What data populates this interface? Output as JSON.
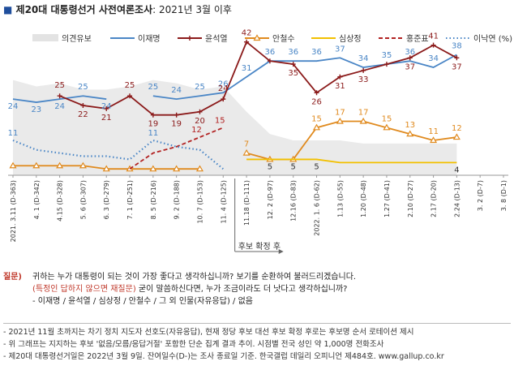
{
  "title": {
    "bullet": "■",
    "main": "제20대 대통령선거 사전여론조사",
    "sub": ": 2021년 3월 이후"
  },
  "chart_data": {
    "type": "line",
    "x": [
      "2021. 3.11 (D-363)",
      "4. 1 (D-342)",
      "4.15 (D-328)",
      "5. 6 (D-307)",
      "6. 3 (D-279)",
      "7. 1 (D-251)",
      "8. 5 (D-216)",
      "9. 2 (D-188)",
      "10. 7 (D-153)",
      "11. 4 (D-125)",
      "11.18 (D-111)",
      "12. 2 (D-97)",
      "12.16 (D-83)",
      "2022. 1. 6 (D-62)",
      "1.13 (D-55)",
      "1.20 (D-48)",
      "1.27 (D-41)",
      "2.10 (D-27)",
      "2.17 (D-20)",
      "2.24 (D-13)",
      "3. 2 (D-7)",
      "3. 8 (D-1)"
    ],
    "ylim": [
      0,
      45
    ],
    "area_label": "의견유보",
    "area": [
      30,
      28,
      29,
      27,
      27,
      28,
      30,
      29,
      27,
      28,
      20,
      13,
      11,
      11,
      11,
      10,
      10,
      10,
      10,
      10,
      null,
      null
    ],
    "series": [
      {
        "name": "이재명",
        "color": "#4a86c6",
        "dash": "",
        "marker": "none",
        "values": [
          24,
          23,
          24,
          25,
          24,
          null,
          25,
          24,
          25,
          26,
          31,
          36,
          36,
          36,
          37,
          34,
          35,
          36,
          34,
          38,
          null,
          null
        ]
      },
      {
        "name": "윤석열",
        "color": "#8b1a1a",
        "dash": "",
        "marker": "plus",
        "values": [
          null,
          null,
          25,
          22,
          21,
          25,
          19,
          19,
          20,
          24,
          42,
          36,
          35,
          26,
          31,
          33,
          35,
          37,
          41,
          37,
          null,
          null
        ]
      },
      {
        "name": "안철수",
        "color": "#e08a1e",
        "dash": "",
        "marker": "triangle",
        "values": [
          3,
          3,
          3,
          3,
          2,
          2,
          2,
          2,
          2,
          null,
          7,
          5,
          5,
          15,
          17,
          17,
          15,
          13,
          11,
          12,
          null,
          null
        ]
      },
      {
        "name": "심상정",
        "color": "#f2c000",
        "dash": "",
        "marker": "none",
        "values": [
          null,
          null,
          null,
          null,
          null,
          null,
          null,
          null,
          null,
          null,
          5,
          5,
          5,
          5,
          4,
          4,
          4,
          4,
          4,
          4,
          null,
          null
        ]
      },
      {
        "name": "홍준표",
        "color": "#b22222",
        "dash": "5,3",
        "marker": "none",
        "values": [
          null,
          null,
          null,
          null,
          null,
          2,
          7,
          9,
          12,
          15,
          null,
          null,
          null,
          null,
          null,
          null,
          null,
          null,
          null,
          null,
          null,
          null
        ]
      },
      {
        "name": "이낙연 (%)",
        "color": "#4a86c6",
        "dash": "1.5,3",
        "marker": "none",
        "values": [
          11,
          8,
          7,
          6,
          6,
          5,
          11,
          9,
          8,
          2,
          null,
          null,
          null,
          null,
          null,
          null,
          null,
          null,
          null,
          null,
          null,
          null
        ]
      }
    ],
    "data_labels": [
      {
        "series": "이재명",
        "text": [
          "24",
          "23",
          "24",
          "25",
          "24",
          null,
          "25",
          "24",
          "25",
          "26",
          "31",
          "36",
          "36",
          "36",
          "37",
          "34",
          "35",
          "36",
          "34",
          "38"
        ]
      },
      {
        "series": "윤석열",
        "text": [
          null,
          null,
          "25",
          "22",
          "21",
          "25",
          "19",
          "19",
          "20",
          "24",
          "42",
          null,
          "35",
          "26",
          "31",
          "33",
          null,
          "37",
          "41",
          "37"
        ]
      },
      {
        "series": "안철수",
        "text": [
          null,
          null,
          null,
          null,
          null,
          null,
          null,
          null,
          null,
          null,
          "7",
          null,
          null,
          "15",
          "17",
          "17",
          "15",
          "13",
          "11",
          "12"
        ]
      },
      {
        "series": "심상정",
        "text": [
          null,
          null,
          null,
          null,
          null,
          null,
          null,
          null,
          null,
          null,
          null,
          "5",
          "5",
          "5",
          null,
          null,
          null,
          null,
          null,
          "4"
        ]
      },
      {
        "series": "홍준표",
        "text": [
          null,
          null,
          null,
          null,
          null,
          null,
          null,
          null,
          "12",
          "15"
        ]
      },
      {
        "series": "이낙연 (%)",
        "text": [
          "11",
          null,
          null,
          null,
          null,
          null,
          "11"
        ]
      }
    ],
    "annotation": "후보 확정 후"
  },
  "question": {
    "label": "질문)",
    "line1": "귀하는 누가 대통령이 되는 것이 가장 좋다고 생각하십니까? 보기를 순환하여 불러드리겠습니다.",
    "line2_red": "(특정인 답하지 않으면 재질문)",
    "line2_rest": " 굳이 말씀하신다면, 누가 조금이라도 더 낫다고 생각하십니까?",
    "line3": "- 이재명 / 윤석열 / 심상정 / 안철수 / 그 외 인물(자유응답) / 없음"
  },
  "notes": [
    "- 2021년 11월 초까지는 차기 정치 지도자 선호도(자유응답), 현재 정당 후보 대선 후보 확정 후로는 후보명 순서 로테이션 제시",
    "- 위 그래프는 지지하는 후보 '없음/모름/응답거절' 포함한 단순 집계 결과 추이. 시점별 전국 성인 약 1,000명 전화조사",
    "- 제20대 대통령선거일은 2022년 3월 9일. 잔여일수(D-)는 조사 종료일 기준. 한국갤럽 데일리 오피니언 제484호. www.gallup.co.kr"
  ]
}
